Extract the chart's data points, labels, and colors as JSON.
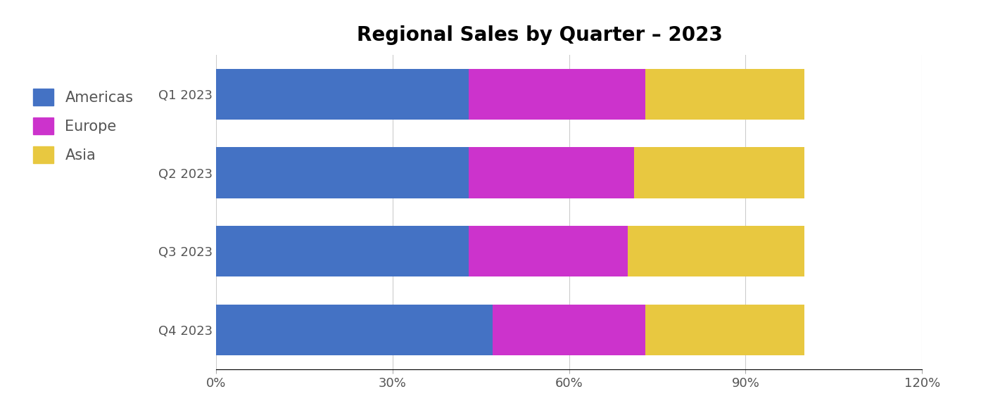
{
  "title": "Regional Sales by Quarter – 2023",
  "categories": [
    "Q1 2023",
    "Q2 2023",
    "Q3 2023",
    "Q4 2023"
  ],
  "series": [
    {
      "label": "Americas",
      "color": "#4472C4",
      "values": [
        43,
        43,
        43,
        47
      ]
    },
    {
      "label": "Europe",
      "color": "#CC33CC",
      "values": [
        30,
        28,
        27,
        26
      ]
    },
    {
      "label": "Asia",
      "color": "#E8C840",
      "values": [
        27,
        29,
        30,
        27
      ]
    }
  ],
  "xlim": [
    0,
    120
  ],
  "xticks": [
    0,
    30,
    60,
    90,
    120
  ],
  "xtick_labels": [
    "0%",
    "30%",
    "60%",
    "90%",
    "120%"
  ],
  "background_color": "#ffffff",
  "bar_height": 0.65,
  "title_fontsize": 20,
  "tick_fontsize": 13,
  "legend_fontsize": 15,
  "ytick_fontsize": 13,
  "legend_text_color": "#555555",
  "ytick_color": "#555555"
}
